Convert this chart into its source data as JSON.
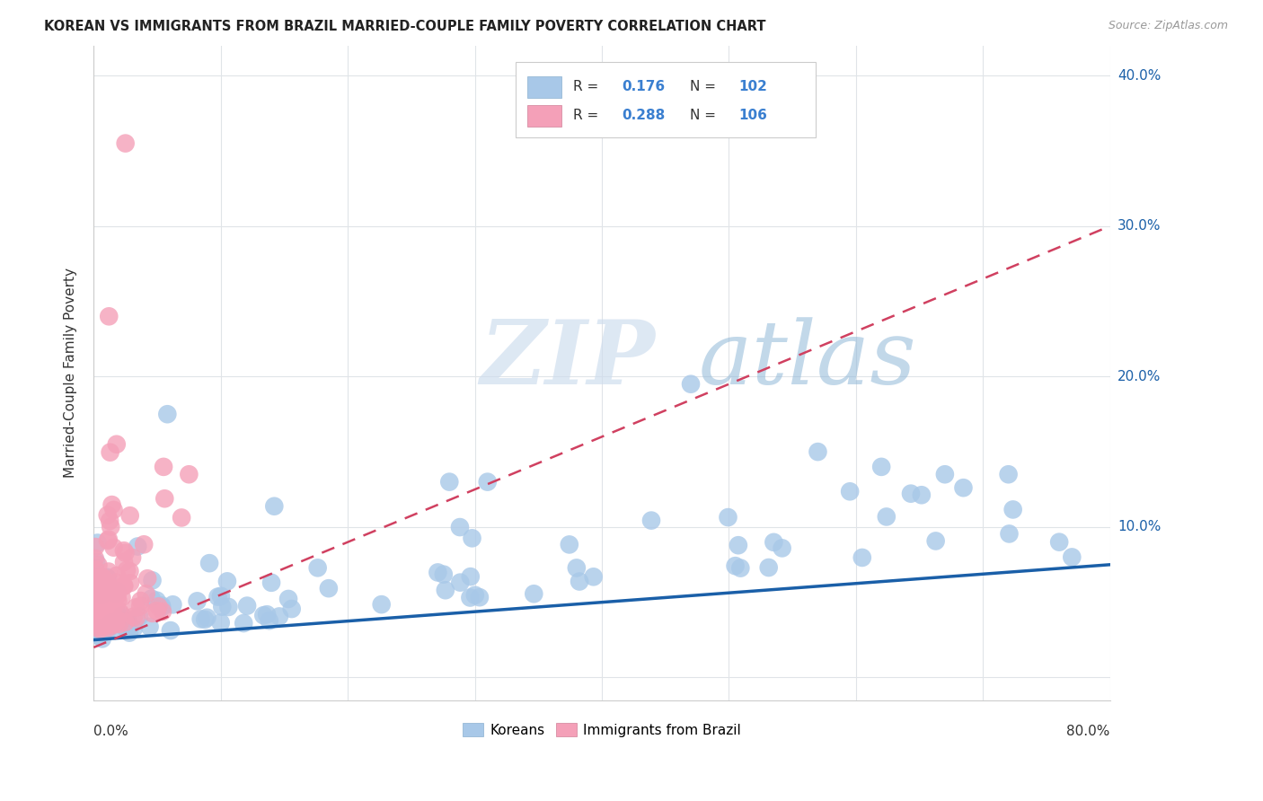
{
  "title": "KOREAN VS IMMIGRANTS FROM BRAZIL MARRIED-COUPLE FAMILY POVERTY CORRELATION CHART",
  "source": "Source: ZipAtlas.com",
  "ylabel": "Married-Couple Family Poverty",
  "xlim": [
    0.0,
    0.8
  ],
  "ylim": [
    -0.015,
    0.42
  ],
  "korean_R": 0.176,
  "korean_N": 102,
  "brazil_R": 0.288,
  "brazil_N": 106,
  "korean_color": "#a8c8e8",
  "brazil_color": "#f4a0b8",
  "korean_line_color": "#1a5fa8",
  "brazil_line_color": "#d04060",
  "watermark_zip_color": "#c0d0e8",
  "watermark_atlas_color": "#90b0d0",
  "background_color": "#ffffff",
  "grid_color": "#e0e4e8",
  "legend_R_N_color": "#3a7fd0",
  "yticks": [
    0.0,
    0.1,
    0.2,
    0.3,
    0.4
  ],
  "ytick_labels": [
    "",
    "10.0%",
    "20.0%",
    "30.0%",
    "40.0%"
  ]
}
